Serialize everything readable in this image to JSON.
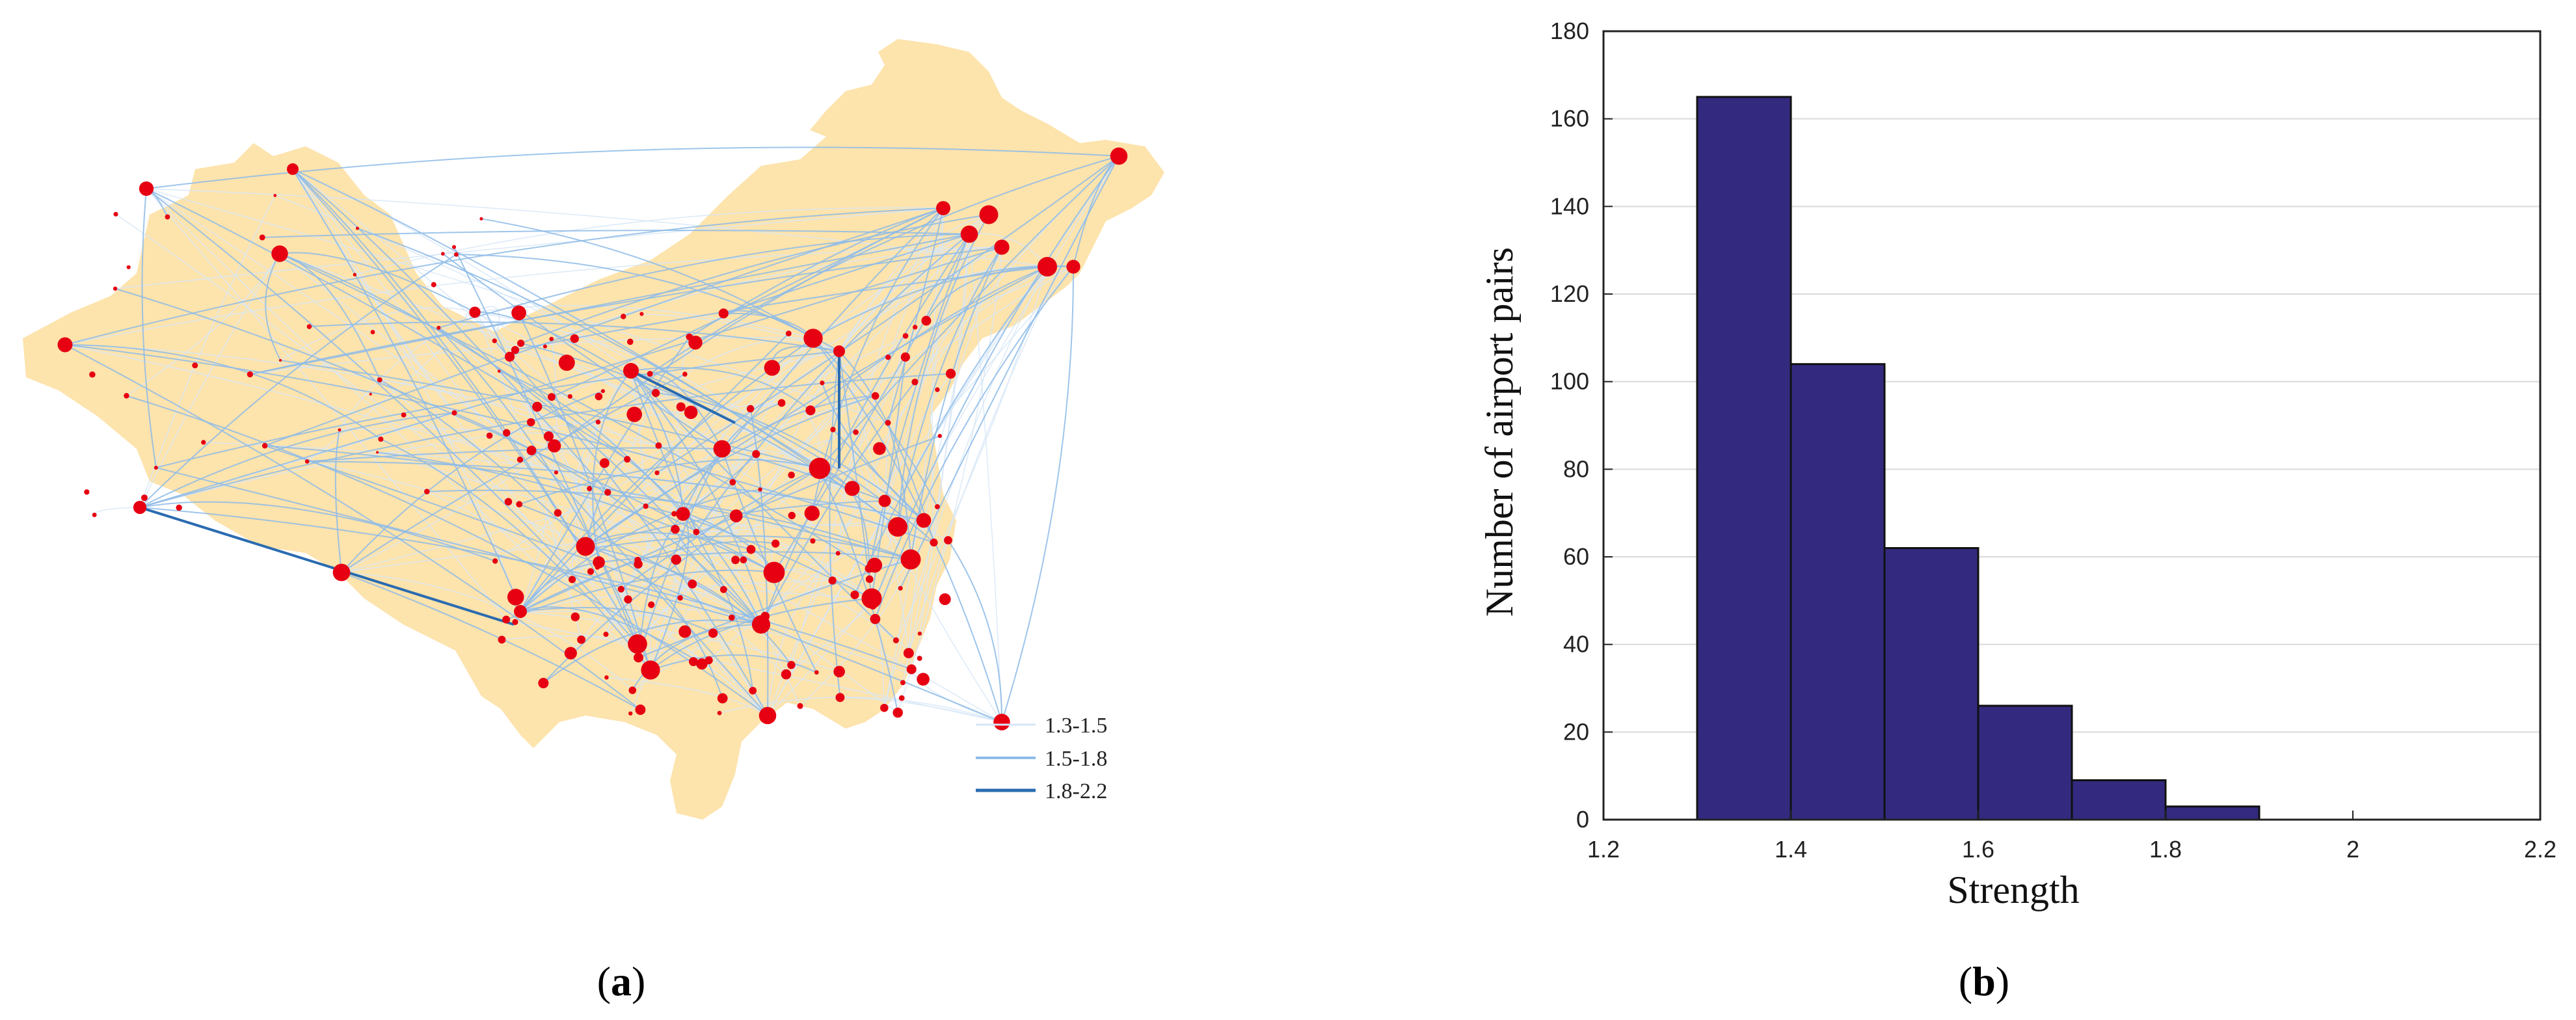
{
  "figure": {
    "panel_a_label": "a",
    "panel_b_label": "b"
  },
  "map_panel": {
    "land_color": "#fde3ac",
    "node_color": "#e60012",
    "legend": [
      {
        "label": "1.3-1.5",
        "color": "#d6e6f7"
      },
      {
        "label": "1.5-1.8",
        "color": "#8dbbe8"
      },
      {
        "label": "1.8-2.2",
        "color": "#2a6bb0"
      }
    ]
  },
  "chart_data": {
    "type": "bar",
    "bin_edges": [
      1.3,
      1.4,
      1.5,
      1.6,
      1.7,
      1.8,
      1.9
    ],
    "values": [
      165,
      104,
      62,
      26,
      9,
      3
    ],
    "xlabel": "Strength",
    "ylabel": "Number of airport pairs",
    "xlim": [
      1.2,
      2.2
    ],
    "ylim": [
      0,
      180
    ],
    "xticks": [
      "1.2",
      "1.4",
      "1.6",
      "1.8",
      "2",
      "2.2"
    ],
    "yticks": [
      "0",
      "20",
      "40",
      "60",
      "80",
      "100",
      "120",
      "140",
      "160",
      "180"
    ],
    "grid": true,
    "bar_color": "#332a7f"
  }
}
